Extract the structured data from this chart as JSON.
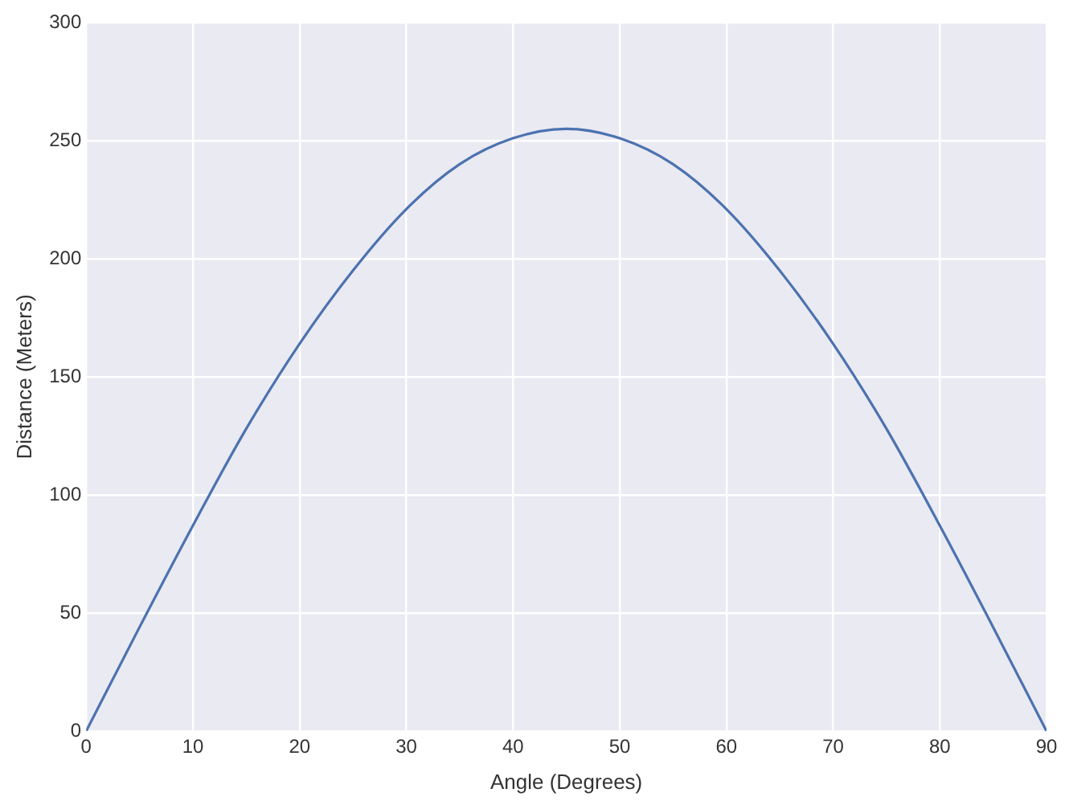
{
  "chart_data": {
    "type": "line",
    "xlabel": "Angle (Degrees)",
    "ylabel": "Distance (Meters)",
    "x": [
      0,
      5,
      10,
      15,
      20,
      25,
      30,
      35,
      40,
      45,
      50,
      55,
      60,
      65,
      70,
      75,
      80,
      85,
      90
    ],
    "series": [
      {
        "color": "#4c72b0",
        "values": [
          0,
          44,
          87,
          128,
          164,
          195,
          221,
          240,
          251,
          255,
          251,
          240,
          221,
          195,
          164,
          128,
          87,
          44,
          0
        ]
      }
    ],
    "xlim": [
      0,
      90
    ],
    "xticks": [
      0,
      10,
      20,
      30,
      40,
      50,
      60,
      70,
      80,
      90
    ],
    "ylim": [
      0,
      300
    ],
    "yticks": [
      0,
      50,
      100,
      150,
      200,
      250,
      300
    ],
    "grid": true,
    "legend": false,
    "marker": "none",
    "line_style": "solid"
  }
}
